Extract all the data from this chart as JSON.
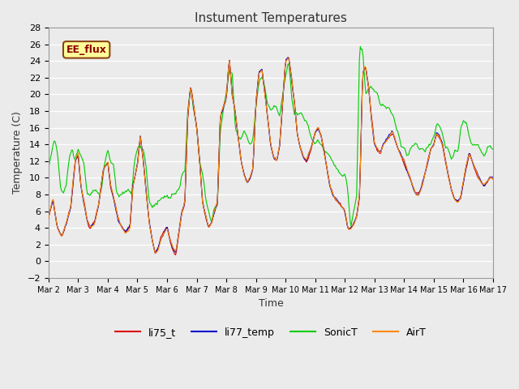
{
  "title": "Instument Temperatures",
  "xlabel": "Time",
  "ylabel": "Temperature (C)",
  "ylim": [
    -2,
    28
  ],
  "plot_bg_color": "#ebebeb",
  "grid_color": "#ffffff",
  "series": {
    "li75_t": {
      "color": "#dd0000",
      "lw": 0.8,
      "zorder": 3
    },
    "li77_temp": {
      "color": "#0000cc",
      "lw": 0.8,
      "zorder": 4
    },
    "SonicT": {
      "color": "#00cc00",
      "lw": 0.8,
      "zorder": 2
    },
    "AirT": {
      "color": "#ff8800",
      "lw": 0.8,
      "zorder": 5
    }
  },
  "xtick_labels": [
    "Mar 2",
    "Mar 3",
    "Mar 4",
    "Mar 5",
    "Mar 6",
    "Mar 7",
    "Mar 8",
    "Mar 9",
    "Mar 10",
    "Mar 11",
    "Mar 12",
    "Mar 13",
    "Mar 14",
    "Mar 15",
    "Mar 16",
    "Mar 17"
  ],
  "annotation_text": "EE_flux",
  "title_fontsize": 11,
  "label_fontsize": 9,
  "tick_fontsize": 8
}
